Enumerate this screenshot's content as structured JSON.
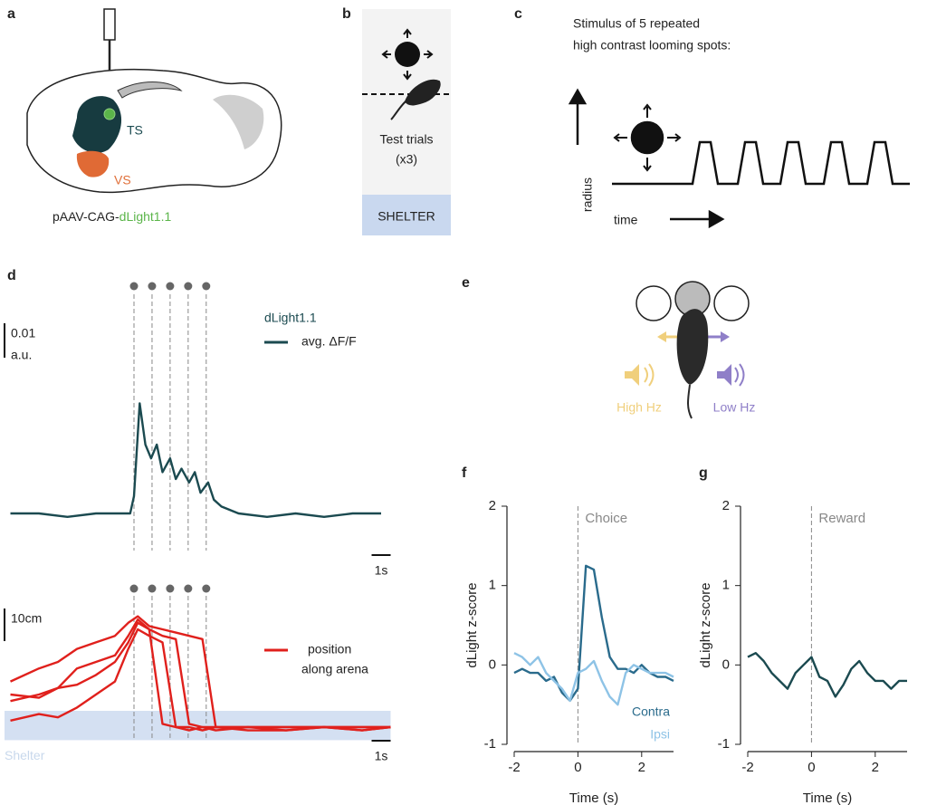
{
  "panels": {
    "labels": [
      "a",
      "b",
      "c",
      "d",
      "e",
      "f",
      "g"
    ],
    "a": {
      "regions": [
        "TS",
        "VS"
      ],
      "construct": [
        "pAAV-CAG-",
        "dLight1.1"
      ]
    },
    "b": {
      "trials": [
        "Test trials",
        "(x3)"
      ],
      "shelter": "SHELTER"
    },
    "c": {
      "caption": [
        "Stimulus of 5 repeated",
        "high contrast looming spots:"
      ],
      "y_label": "radius",
      "x_label": "time"
    },
    "e": {
      "sounds": [
        "High Hz",
        "Low Hz"
      ]
    }
  },
  "chart_data": [
    {
      "type": "line",
      "legend_title": "dLight1.1",
      "x": [
        -6.5,
        -5,
        -3.5,
        -2,
        -1,
        -0.2,
        0,
        0.3,
        0.6,
        0.9,
        1.2,
        1.5,
        1.9,
        2.2,
        2.5,
        2.9,
        3.2,
        3.5,
        3.9,
        4.2,
        4.6,
        5.5,
        7,
        8.5,
        10,
        11.5,
        13
      ],
      "series": [
        {
          "name": "avg. ΔF/F",
          "color": "#1b4a50",
          "values": [
            0,
            0,
            -0.001,
            0,
            0,
            0,
            0.005,
            0.032,
            0.02,
            0.016,
            0.02,
            0.012,
            0.016,
            0.01,
            0.013,
            0.009,
            0.012,
            0.006,
            0.009,
            0.004,
            0.002,
            0,
            -0.001,
            0,
            -0.001,
            0,
            0
          ]
        }
      ],
      "xlim": [
        -6.5,
        13.5
      ],
      "ylim": [
        -0.008,
        0.06
      ],
      "stimuli": [
        0,
        0.95,
        1.9,
        2.85,
        3.8
      ],
      "y_scale": 0.01,
      "y_scale_unit": "a.u.",
      "x_scale": {
        "value": 1,
        "label": "1s"
      }
    },
    {
      "type": "line",
      "color": "#e0201c",
      "legend_lines": [
        "position",
        "along arena"
      ],
      "x": [
        -6.5,
        -5,
        -4,
        -3,
        -2,
        -1,
        -0.3,
        0.2,
        0.8,
        1.5,
        2.2,
        2.9,
        3.6,
        4.3,
        6,
        8,
        10,
        12,
        13.5
      ],
      "series": [
        {
          "values": [
            14,
            18,
            20,
            24,
            26,
            28,
            32,
            34,
            31,
            30,
            29,
            28,
            27,
            0,
            -1,
            -1,
            0,
            -1,
            0
          ]
        },
        {
          "values": [
            8,
            10,
            12,
            18,
            20,
            22,
            28,
            33,
            30,
            1,
            0,
            -1,
            0,
            0,
            0,
            -1,
            0,
            0,
            0
          ]
        },
        {
          "values": [
            2,
            4,
            3,
            6,
            10,
            14,
            24,
            30,
            28,
            26,
            0,
            0,
            -1,
            0,
            0,
            0,
            0,
            -1,
            0
          ]
        },
        {
          "values": [
            10,
            9,
            12,
            13,
            16,
            20,
            26,
            32,
            30,
            28,
            27,
            1,
            0,
            -1,
            0,
            0,
            0,
            0,
            0
          ]
        }
      ],
      "xlim": [
        -6.5,
        13.5
      ],
      "ylim": [
        -5,
        45
      ],
      "stimuli": [
        0,
        0.95,
        1.9,
        2.85,
        3.8
      ],
      "shelter": {
        "label": "Shelter",
        "range": [
          -4,
          5
        ]
      },
      "y_scale": {
        "value": 10,
        "label": "10cm"
      },
      "x_scale": {
        "value": 1,
        "label": "1s"
      }
    },
    {
      "type": "line",
      "x_label": "Time (s)",
      "y_label": "dLight z-score",
      "event": {
        "label": "Choice",
        "x": 0
      },
      "x": [
        -2,
        -1.75,
        -1.5,
        -1.25,
        -1,
        -0.75,
        -0.5,
        -0.25,
        0,
        0.25,
        0.5,
        0.75,
        1,
        1.25,
        1.5,
        1.75,
        2,
        2.25,
        2.5,
        2.75,
        3
      ],
      "series": [
        {
          "name": "Contra",
          "color": "#2a6b8c",
          "values": [
            -0.1,
            -0.05,
            -0.1,
            -0.1,
            -0.2,
            -0.15,
            -0.35,
            -0.45,
            -0.3,
            1.25,
            1.2,
            0.6,
            0.1,
            -0.05,
            -0.05,
            -0.1,
            0,
            -0.1,
            -0.15,
            -0.15,
            -0.2
          ]
        },
        {
          "name": "Ipsi",
          "color": "#8ec3e6",
          "values": [
            0.15,
            0.1,
            0,
            0.1,
            -0.1,
            -0.2,
            -0.3,
            -0.45,
            -0.1,
            -0.05,
            0.05,
            -0.2,
            -0.4,
            -0.5,
            -0.1,
            0,
            -0.05,
            -0.1,
            -0.1,
            -0.1,
            -0.15
          ]
        }
      ],
      "xlim": [
        -2,
        3
      ],
      "ylim": [
        -1,
        2
      ],
      "xticks": [
        -2,
        0,
        2
      ],
      "yticks": [
        -1,
        0,
        1,
        2
      ]
    },
    {
      "type": "line",
      "x_label": "Time (s)",
      "y_label": "dLight z-score",
      "event": {
        "label": "Reward",
        "x": 0
      },
      "x": [
        -2,
        -1.75,
        -1.5,
        -1.25,
        -1,
        -0.75,
        -0.5,
        -0.25,
        0,
        0.25,
        0.5,
        0.75,
        1,
        1.25,
        1.5,
        1.75,
        2,
        2.25,
        2.5,
        2.75,
        3
      ],
      "series": [
        {
          "color": "#1b4a50",
          "values": [
            0.1,
            0.15,
            0.05,
            -0.1,
            -0.2,
            -0.3,
            -0.1,
            0,
            0.1,
            -0.15,
            -0.2,
            -0.4,
            -0.25,
            -0.05,
            0.05,
            -0.1,
            -0.2,
            -0.2,
            -0.3,
            -0.2,
            -0.2
          ]
        }
      ],
      "xlim": [
        -2,
        3
      ],
      "ylim": [
        -1,
        2
      ],
      "xticks": [
        -2,
        0,
        2
      ],
      "yticks": [
        -1,
        0,
        1,
        2
      ]
    }
  ]
}
